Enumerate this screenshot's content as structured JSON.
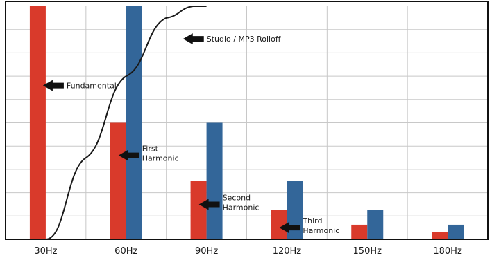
{
  "chart_data": {
    "type": "bar",
    "categories": [
      "30Hz",
      "60Hz",
      "90Hz",
      "120Hz",
      "150Hz",
      "180Hz"
    ],
    "ylim": [
      0,
      100
    ],
    "grid": true,
    "colors": {
      "red": "#d93a2b",
      "blue": "#336699",
      "grid": "#c8c8c8",
      "curve": "#1a1a1a"
    },
    "series": [
      {
        "values": [
          100,
          50,
          25,
          12.5,
          6.25,
          3.1
        ]
      },
      {
        "values": [
          0,
          100,
          50,
          25,
          12.5,
          6.25
        ]
      }
    ],
    "rolloff_curve": {
      "label": "Studio / MP3 Rolloff",
      "x": [
        30,
        45,
        60,
        75,
        85,
        90
      ],
      "y": [
        0,
        35,
        70,
        95,
        100,
        100
      ]
    },
    "annotations": [
      {
        "id": "fundamental",
        "lines": [
          "Fundamental"
        ],
        "category": "30Hz",
        "y": 66
      },
      {
        "id": "first",
        "lines": [
          "First",
          "Harmonic"
        ],
        "category": "60Hz",
        "y": 36
      },
      {
        "id": "second",
        "lines": [
          "Second",
          "Harmonic"
        ],
        "category": "90Hz",
        "y": 15
      },
      {
        "id": "third",
        "lines": [
          "Third",
          "Harmonic"
        ],
        "category": "120Hz",
        "y": 5
      },
      {
        "id": "rolloff",
        "lines": [
          "Studio / MP3 Rolloff"
        ],
        "category": "60Hz",
        "y": 86
      }
    ]
  }
}
